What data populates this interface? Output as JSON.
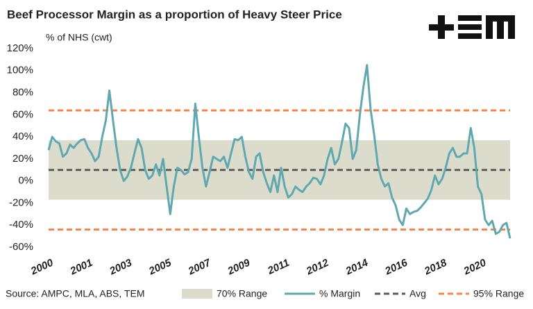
{
  "chart_data": {
    "type": "line",
    "title": "Beef Processor Margin as a proportion of Heavy Steer Price",
    "y_label": "% of NHS (cwt)",
    "source": "Source: AMPC, MLA, ABS, TEM",
    "ylim": [
      -60,
      120
    ],
    "yticks": [
      {
        "value": -60,
        "label": "-60%"
      },
      {
        "value": -40,
        "label": "-40%"
      },
      {
        "value": -20,
        "label": "-20%"
      },
      {
        "value": 0,
        "label": "0%"
      },
      {
        "value": 20,
        "label": "20%"
      },
      {
        "value": 40,
        "label": "40%"
      },
      {
        "value": 60,
        "label": "60%"
      },
      {
        "value": 80,
        "label": "80%"
      },
      {
        "value": 100,
        "label": "100%"
      },
      {
        "value": 120,
        "label": "120%"
      }
    ],
    "categories": [
      "2000",
      null,
      null,
      null,
      null,
      null,
      null,
      null,
      null,
      null,
      null,
      "2001",
      null,
      null,
      null,
      null,
      null,
      null,
      null,
      null,
      null,
      null,
      "2003",
      null,
      null,
      null,
      null,
      null,
      null,
      null,
      null,
      null,
      null,
      "2005",
      null,
      null,
      null,
      null,
      null,
      null,
      null,
      null,
      null,
      null,
      "2007",
      null,
      null,
      null,
      null,
      null,
      null,
      null,
      null,
      null,
      null,
      "2009",
      null,
      null,
      null,
      null,
      null,
      null,
      null,
      null,
      null,
      null,
      "2011",
      null,
      null,
      null,
      null,
      null,
      null,
      null,
      null,
      null,
      null,
      "2012",
      null,
      null,
      null,
      null,
      null,
      null,
      null,
      null,
      null,
      null,
      "2014",
      null,
      null,
      null,
      null,
      null,
      null,
      null,
      null,
      null,
      null,
      "2016",
      null,
      null,
      null,
      null,
      null,
      null,
      null,
      null,
      null,
      null,
      "2018",
      null,
      null,
      null,
      null,
      null,
      null,
      null,
      null,
      null,
      null,
      "2020",
      null,
      null,
      null,
      null,
      null,
      null,
      null,
      null
    ],
    "series": [
      {
        "name": "% Margin",
        "color": "#5fa8b0",
        "values": [
          28,
          40,
          36,
          34,
          22,
          25,
          33,
          30,
          34,
          37,
          38,
          30,
          25,
          18,
          22,
          40,
          55,
          82,
          55,
          30,
          10,
          0,
          4,
          12,
          25,
          38,
          30,
          10,
          2,
          5,
          15,
          5,
          20,
          -5,
          -30,
          -5,
          12,
          10,
          6,
          8,
          20,
          70,
          40,
          12,
          -5,
          8,
          22,
          20,
          18,
          22,
          12,
          25,
          38,
          37,
          40,
          22,
          8,
          2,
          22,
          25,
          8,
          -2,
          -10,
          5,
          -10,
          12,
          -5,
          -15,
          -12,
          -5,
          -8,
          -10,
          -5,
          -2,
          3,
          2,
          -3,
          5,
          20,
          30,
          15,
          20,
          35,
          52,
          48,
          20,
          28,
          60,
          85,
          105,
          65,
          42,
          15,
          2,
          -5,
          -2,
          -15,
          -22,
          -35,
          -40,
          -25,
          -30,
          -28,
          -27,
          -24,
          -20,
          -16,
          -8,
          5,
          -3,
          2,
          12,
          25,
          30,
          22,
          22,
          25,
          25,
          48,
          30,
          -5,
          -12,
          -35,
          -40,
          -36,
          -48,
          -46,
          -40,
          -38,
          -52
        ]
      }
    ],
    "bands": [
      {
        "name": "70% Range",
        "color": "#dcdccc",
        "values": [
          -17,
          37
        ]
      }
    ],
    "reference_lines": [
      {
        "name": "Avg",
        "color": "#5a5a5a",
        "values": [
          10
        ]
      },
      {
        "name": "95% Range",
        "color": "#f4844c",
        "values": [
          64,
          -44
        ]
      }
    ]
  }
}
